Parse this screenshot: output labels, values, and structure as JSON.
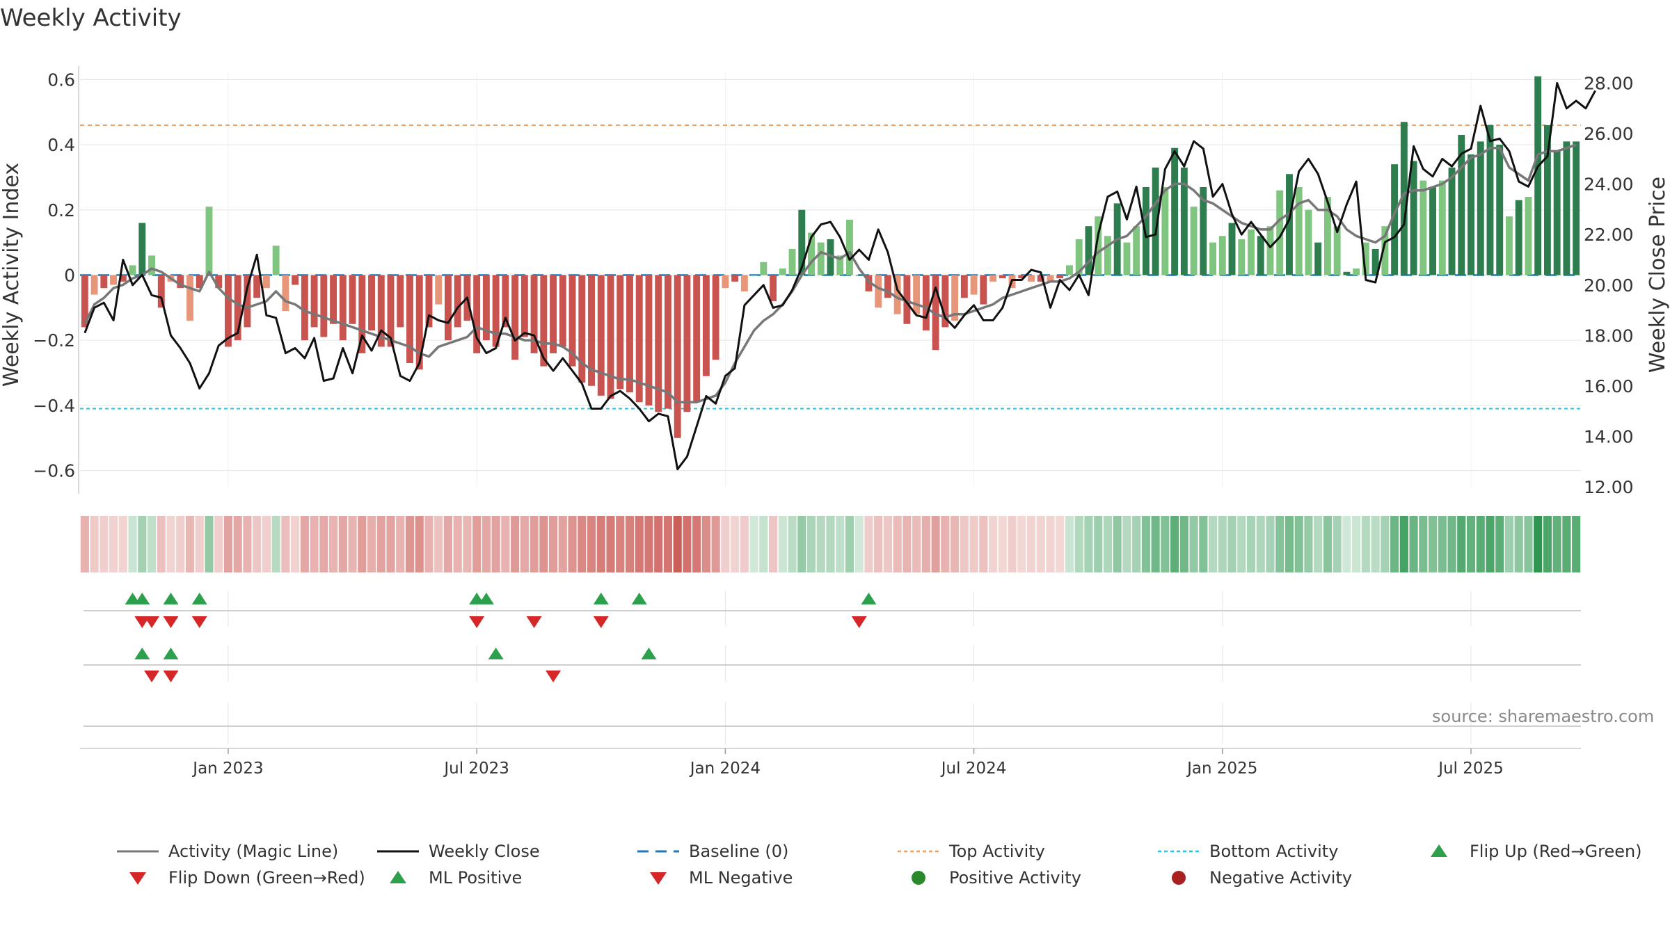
{
  "title": "Weekly Activity",
  "source": "source: sharemaestro.com",
  "colors": {
    "magic_line": "#777777",
    "close_line": "#111111",
    "baseline": "#1f77b4",
    "top_line": "#f0a060",
    "bottom_line": "#22c2e0",
    "green_strong": "#2e7d4f",
    "green_light": "#7fc47f",
    "red_strong": "#c9534f",
    "red_light": "#e8967a",
    "marker_up": "#2ca04c",
    "marker_down": "#d62728"
  },
  "chart_data": {
    "type": "bar",
    "title": "Weekly Activity",
    "ylabel": "Weekly Activity Index",
    "y2label": "Weekly Close Price",
    "ylim": [
      -0.65,
      0.62
    ],
    "y2lim": [
      12,
      28.4
    ],
    "yticks": [
      0.6,
      0.4,
      0.2,
      0,
      -0.2,
      -0.4,
      -0.6
    ],
    "ytick_labels": [
      "0.6",
      "0.4",
      "0.2",
      "0",
      "−0.2",
      "−0.4",
      "−0.6"
    ],
    "y2ticks": [
      28,
      26,
      24,
      22,
      20,
      18,
      16,
      14,
      12
    ],
    "y2tick_labels": [
      "28.00",
      "26.00",
      "24.00",
      "22.00",
      "20.00",
      "18.00",
      "16.00",
      "14.00",
      "12.00"
    ],
    "x_start_week": -15,
    "x_tick_weeks": [
      0,
      26,
      52,
      78,
      104,
      130
    ],
    "xtick_labels": [
      "Jan 2023",
      "Jul 2023",
      "Jan 2024",
      "Jul 2024",
      "Jan 2025",
      "Jul 2025"
    ],
    "top_activity": 0.46,
    "bottom_activity": -0.41,
    "baseline": 0,
    "activity": [
      -0.16,
      -0.06,
      -0.04,
      -0.03,
      -0.02,
      0.03,
      0.16,
      0.06,
      -0.1,
      -0.02,
      -0.04,
      -0.14,
      -0.04,
      0.21,
      -0.04,
      -0.22,
      -0.2,
      -0.16,
      -0.07,
      -0.04,
      0.09,
      -0.11,
      -0.03,
      -0.2,
      -0.16,
      -0.19,
      -0.15,
      -0.2,
      -0.15,
      -0.24,
      -0.17,
      -0.22,
      -0.22,
      -0.16,
      -0.27,
      -0.29,
      -0.16,
      -0.09,
      -0.2,
      -0.16,
      -0.14,
      -0.24,
      -0.2,
      -0.22,
      -0.16,
      -0.26,
      -0.19,
      -0.24,
      -0.28,
      -0.24,
      -0.22,
      -0.28,
      -0.33,
      -0.34,
      -0.37,
      -0.38,
      -0.35,
      -0.36,
      -0.39,
      -0.4,
      -0.42,
      -0.41,
      -0.5,
      -0.42,
      -0.39,
      -0.31,
      -0.26,
      -0.04,
      -0.02,
      -0.05,
      0.0,
      0.04,
      -0.08,
      0.02,
      0.08,
      0.2,
      0.13,
      0.1,
      0.11,
      0.06,
      0.17,
      0.0,
      -0.05,
      -0.1,
      -0.07,
      -0.12,
      -0.15,
      -0.12,
      -0.17,
      -0.23,
      -0.16,
      -0.14,
      -0.07,
      -0.06,
      -0.09,
      -0.02,
      -0.01,
      -0.04,
      -0.01,
      -0.02,
      -0.02,
      -0.02,
      -0.01,
      0.03,
      0.11,
      0.15,
      0.18,
      0.12,
      0.22,
      0.1,
      0.15,
      0.27,
      0.33,
      0.27,
      0.39,
      0.33,
      0.21,
      0.27,
      0.1,
      0.12,
      0.16,
      0.11,
      0.14,
      0.12,
      0.15,
      0.26,
      0.31,
      0.27,
      0.2,
      0.1,
      0.24,
      0.15,
      0.01,
      0.02,
      0.1,
      0.08,
      0.15,
      0.34,
      0.47,
      0.35,
      0.29,
      0.27,
      0.29,
      0.33,
      0.43,
      0.37,
      0.41,
      0.46,
      0.4,
      0.18,
      0.23,
      0.24,
      0.61,
      0.46,
      0.38,
      0.41,
      0.41
    ],
    "magic_line": [
      -0.15,
      -0.09,
      -0.07,
      -0.04,
      -0.03,
      -0.01,
      0.0,
      0.02,
      0.01,
      -0.01,
      -0.03,
      -0.04,
      -0.05,
      0.01,
      -0.04,
      -0.07,
      -0.09,
      -0.1,
      -0.09,
      -0.08,
      -0.05,
      -0.08,
      -0.09,
      -0.11,
      -0.12,
      -0.13,
      -0.14,
      -0.15,
      -0.16,
      -0.17,
      -0.18,
      -0.19,
      -0.2,
      -0.21,
      -0.22,
      -0.24,
      -0.25,
      -0.22,
      -0.21,
      -0.2,
      -0.19,
      -0.16,
      -0.17,
      -0.18,
      -0.18,
      -0.19,
      -0.2,
      -0.2,
      -0.21,
      -0.21,
      -0.22,
      -0.24,
      -0.27,
      -0.29,
      -0.3,
      -0.31,
      -0.32,
      -0.32,
      -0.33,
      -0.34,
      -0.35,
      -0.36,
      -0.39,
      -0.39,
      -0.39,
      -0.38,
      -0.37,
      -0.33,
      -0.27,
      -0.22,
      -0.17,
      -0.14,
      -0.12,
      -0.09,
      -0.05,
      0.0,
      0.04,
      0.07,
      0.06,
      0.05,
      0.07,
      0.02,
      -0.02,
      -0.04,
      -0.05,
      -0.07,
      -0.08,
      -0.09,
      -0.1,
      -0.12,
      -0.13,
      -0.12,
      -0.12,
      -0.11,
      -0.1,
      -0.09,
      -0.07,
      -0.06,
      -0.05,
      -0.04,
      -0.03,
      -0.02,
      -0.02,
      -0.01,
      0.01,
      0.04,
      0.07,
      0.09,
      0.11,
      0.12,
      0.15,
      0.18,
      0.22,
      0.26,
      0.28,
      0.28,
      0.26,
      0.23,
      0.22,
      0.2,
      0.18,
      0.16,
      0.15,
      0.14,
      0.14,
      0.17,
      0.19,
      0.22,
      0.23,
      0.2,
      0.2,
      0.18,
      0.14,
      0.12,
      0.11,
      0.1,
      0.12,
      0.19,
      0.25,
      0.26,
      0.26,
      0.27,
      0.28,
      0.3,
      0.33,
      0.36,
      0.37,
      0.39,
      0.39,
      0.33,
      0.31,
      0.29,
      0.37,
      0.38,
      0.38,
      0.39,
      0.4
    ],
    "weekly_close": [
      18.1,
      19.1,
      19.3,
      18.6,
      21.0,
      20.0,
      20.4,
      19.6,
      19.5,
      18.0,
      17.5,
      16.9,
      15.9,
      16.5,
      17.6,
      17.9,
      18.1,
      19.9,
      21.2,
      18.8,
      18.7,
      17.3,
      17.5,
      17.1,
      17.9,
      16.2,
      16.3,
      17.5,
      16.5,
      18.0,
      17.4,
      18.2,
      17.9,
      16.4,
      16.2,
      16.9,
      18.8,
      18.6,
      18.5,
      19.1,
      19.5,
      17.9,
      17.3,
      17.5,
      18.7,
      17.8,
      18.1,
      18.0,
      17.1,
      16.6,
      17.1,
      16.6,
      16.1,
      15.1,
      15.1,
      15.6,
      15.8,
      15.5,
      15.1,
      14.6,
      14.9,
      14.8,
      12.7,
      13.2,
      14.4,
      15.6,
      15.3,
      16.4,
      16.7,
      19.2,
      19.6,
      20.0,
      19.1,
      19.2,
      19.8,
      20.7,
      21.9,
      22.4,
      22.5,
      21.9,
      21.0,
      21.4,
      21.0,
      22.2,
      21.3,
      19.8,
      19.3,
      18.8,
      18.7,
      19.9,
      18.7,
      18.3,
      18.8,
      19.2,
      18.6,
      18.6,
      19.1,
      20.2,
      20.2,
      20.6,
      20.5,
      19.1,
      20.2,
      19.8,
      20.4,
      19.6,
      22.0,
      23.5,
      23.7,
      22.6,
      23.9,
      21.9,
      22.0,
      24.6,
      25.3,
      24.7,
      25.7,
      25.4,
      23.5,
      24.0,
      22.8,
      22.0,
      22.5,
      22.0,
      21.5,
      21.9,
      22.6,
      24.5,
      25.0,
      24.4,
      23.3,
      22.1,
      23.2,
      24.1,
      20.2,
      20.1,
      21.7,
      21.9,
      22.4,
      25.5,
      24.6,
      24.3,
      25.0,
      24.7,
      25.2,
      25.4,
      27.1,
      25.7,
      25.8,
      25.3,
      24.1,
      23.9,
      24.7,
      25.1,
      28.0,
      27.0,
      27.3,
      27.0,
      27.7
    ],
    "flip_up_weeks": [
      -10,
      -9,
      -6,
      -3,
      26,
      27,
      39,
      43,
      67
    ],
    "flip_down_weeks": [
      -9,
      -8,
      -6,
      -3,
      26,
      32,
      39,
      66
    ],
    "ml_positive_weeks": [
      -9,
      -6,
      28,
      44
    ],
    "ml_negative_weeks": [
      -8,
      -6,
      34
    ]
  },
  "legend": {
    "magic_line": "Activity (Magic Line)",
    "weekly_close": "Weekly Close",
    "baseline": "Baseline (0)",
    "top_activity": "Top Activity",
    "bottom_activity": "Bottom Activity",
    "flip_up": "Flip Up (Red→Green)",
    "flip_down": "Flip Down (Green→Red)",
    "ml_positive": "ML Positive",
    "ml_negative": "ML Negative",
    "positive_activity": "Positive Activity",
    "negative_activity": "Negative Activity"
  }
}
